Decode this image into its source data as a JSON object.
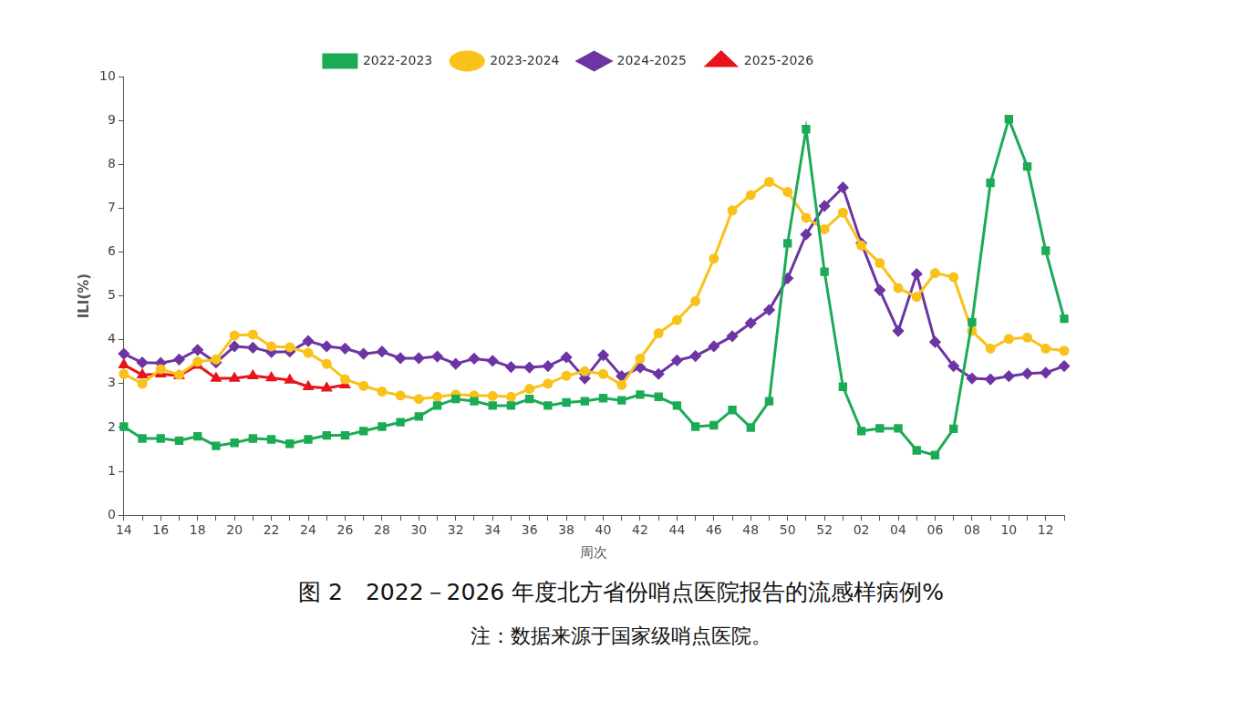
{
  "chart_data": {
    "type": "line",
    "title": "图 2　2022－2026 年度北方省份哨点医院报告的流感样病例%",
    "note": "注：数据来源于国家级哨点医院。",
    "x_label": "周次",
    "y_label": "ILI(%)",
    "categories": [
      "14",
      null,
      "16",
      null,
      "18",
      null,
      "20",
      null,
      "22",
      null,
      "24",
      null,
      "26",
      null,
      "28",
      null,
      "30",
      null,
      "32",
      null,
      "34",
      null,
      "36",
      null,
      "38",
      null,
      "40",
      null,
      "42",
      null,
      "44",
      null,
      "46",
      null,
      "48",
      null,
      "50",
      null,
      "52",
      null,
      "02",
      null,
      "04",
      null,
      "06",
      null,
      "08",
      null,
      "10",
      null,
      "12",
      null
    ],
    "ylim": [
      0,
      10
    ],
    "yticks": [
      0,
      1,
      2,
      3,
      4,
      5,
      6,
      7,
      8,
      9,
      10
    ],
    "grid": false,
    "legend": "top",
    "series": [
      {
        "name": "2022-2023",
        "color": "#1bab55",
        "marker": "square",
        "values": [
          2.02,
          1.75,
          1.75,
          1.7,
          1.8,
          1.58,
          1.65,
          1.75,
          1.73,
          1.63,
          1.73,
          1.82,
          1.82,
          1.92,
          2.02,
          2.12,
          2.25,
          2.5,
          2.65,
          2.6,
          2.5,
          2.5,
          2.65,
          2.5,
          2.57,
          2.6,
          2.67,
          2.62,
          2.75,
          2.7,
          2.5,
          2.02,
          2.05,
          2.4,
          2.0,
          2.6,
          6.2,
          8.8,
          5.55,
          2.93,
          1.92,
          1.98,
          1.98,
          1.48,
          1.37,
          1.97,
          4.4,
          7.58,
          9.03,
          7.95,
          6.03,
          4.48
        ]
      },
      {
        "name": "2023-2024",
        "color": "#f9c21a",
        "marker": "circle",
        "values": [
          3.22,
          3.0,
          3.33,
          3.2,
          3.5,
          3.55,
          4.1,
          4.12,
          3.85,
          3.83,
          3.7,
          3.45,
          3.1,
          2.95,
          2.82,
          2.73,
          2.65,
          2.7,
          2.75,
          2.73,
          2.72,
          2.7,
          2.88,
          3.0,
          3.18,
          3.28,
          3.22,
          2.97,
          3.57,
          4.15,
          4.45,
          4.88,
          5.85,
          6.95,
          7.3,
          7.6,
          7.37,
          6.78,
          6.52,
          6.9,
          6.15,
          5.75,
          5.18,
          4.98,
          5.52,
          5.43,
          4.2,
          3.8,
          4.02,
          4.05,
          3.8,
          3.75
        ]
      },
      {
        "name": "2024-2025",
        "color": "#6c35a3",
        "marker": "diamond",
        "values": [
          3.68,
          3.48,
          3.47,
          3.55,
          3.77,
          3.48,
          3.85,
          3.82,
          3.72,
          3.73,
          3.97,
          3.85,
          3.8,
          3.68,
          3.73,
          3.58,
          3.58,
          3.62,
          3.45,
          3.57,
          3.52,
          3.38,
          3.37,
          3.4,
          3.6,
          3.12,
          3.65,
          3.17,
          3.37,
          3.22,
          3.53,
          3.63,
          3.85,
          4.08,
          4.38,
          4.68,
          5.4,
          6.4,
          7.05,
          7.47,
          6.2,
          5.13,
          4.2,
          5.5,
          3.95,
          3.4,
          3.12,
          3.1,
          3.17,
          3.23,
          3.25,
          3.4
        ]
      },
      {
        "name": "2025-2026",
        "color": "#e8141b",
        "marker": "triangle",
        "values": [
          3.43,
          3.2,
          3.22,
          3.18,
          3.42,
          3.12,
          3.12,
          3.18,
          3.13,
          3.08,
          2.93,
          2.9,
          2.97,
          null,
          null,
          null,
          null,
          null,
          null,
          null,
          null,
          null,
          null,
          null,
          null,
          null,
          null,
          null,
          null,
          null,
          null,
          null,
          null,
          null,
          null,
          null,
          null,
          null,
          null,
          null,
          null,
          null,
          null,
          null,
          null,
          null,
          null,
          null,
          null,
          null,
          null,
          null
        ]
      }
    ]
  }
}
